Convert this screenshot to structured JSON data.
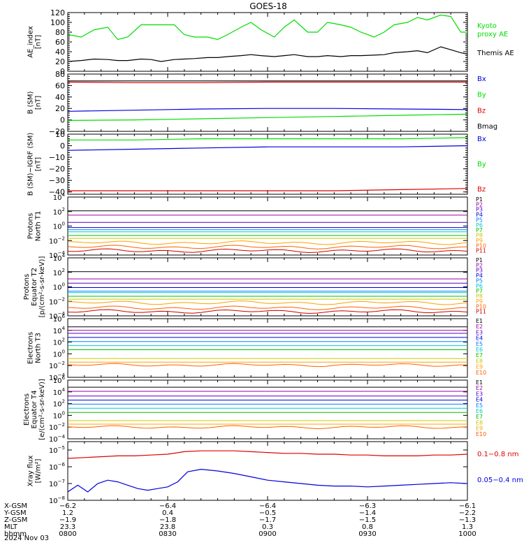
{
  "title": "GOES-18",
  "date_label": "2024 Nov 03",
  "colors": {
    "green": "#00dd00",
    "black": "#000000",
    "blue": "#0000dd",
    "red": "#dd0000",
    "p": [
      "#000000",
      "#a000a0",
      "#5000c8",
      "#0000dd",
      "#0080ff",
      "#00c8c8",
      "#00c000",
      "#c8c800",
      "#ffa000",
      "#ff6000",
      "#cc0000",
      "#990000"
    ]
  },
  "chart_data": [
    {
      "type": "line",
      "id": "ae",
      "ylabel": "AE_index\n[nT]",
      "ylim": [
        0,
        120
      ],
      "yticks": [
        0,
        20,
        40,
        60,
        80,
        100,
        120
      ],
      "xlim": [
        0,
        120
      ],
      "series": [
        {
          "name": "Kyoto\nproxy AE",
          "color": "green",
          "x": [
            0,
            4,
            8,
            12,
            15,
            18,
            22,
            25,
            28,
            32,
            35,
            38,
            42,
            45,
            48,
            52,
            55,
            58,
            62,
            65,
            68,
            72,
            75,
            78,
            82,
            85,
            88,
            92,
            95,
            98,
            102,
            105,
            108,
            112,
            115,
            118,
            120
          ],
          "y": [
            75,
            70,
            85,
            90,
            65,
            70,
            95,
            95,
            95,
            95,
            75,
            70,
            70,
            65,
            75,
            90,
            100,
            85,
            70,
            90,
            105,
            80,
            80,
            100,
            95,
            90,
            80,
            70,
            80,
            95,
            100,
            110,
            105,
            115,
            112,
            80,
            80
          ]
        },
        {
          "name": "Themis AE",
          "color": "black",
          "x": [
            0,
            4,
            8,
            12,
            15,
            18,
            22,
            25,
            28,
            32,
            35,
            38,
            42,
            45,
            48,
            52,
            55,
            58,
            62,
            65,
            68,
            72,
            75,
            78,
            82,
            85,
            88,
            92,
            95,
            98,
            102,
            105,
            108,
            112,
            115,
            118,
            120
          ],
          "y": [
            20,
            22,
            25,
            24,
            22,
            22,
            25,
            24,
            20,
            24,
            25,
            26,
            28,
            28,
            30,
            32,
            34,
            32,
            30,
            32,
            34,
            30,
            30,
            32,
            30,
            32,
            32,
            33,
            34,
            38,
            40,
            42,
            38,
            50,
            44,
            38,
            35
          ]
        }
      ]
    },
    {
      "type": "line",
      "id": "bsm",
      "ylabel": "B (SM)\n[nT]",
      "ylim": [
        -20,
        80
      ],
      "yticks": [
        -20,
        0,
        20,
        40,
        60,
        80
      ],
      "xlim": [
        0,
        120
      ],
      "series": [
        {
          "name": "Bx",
          "color": "blue",
          "x": [
            0,
            20,
            40,
            60,
            80,
            100,
            120
          ],
          "y": [
            15,
            17,
            19,
            20,
            20,
            19,
            18
          ]
        },
        {
          "name": "By",
          "color": "green",
          "x": [
            0,
            20,
            40,
            60,
            80,
            100,
            120
          ],
          "y": [
            -1,
            0,
            2,
            4,
            6,
            8,
            10
          ]
        },
        {
          "name": "Bz",
          "color": "red",
          "x": [
            0,
            20,
            40,
            60,
            80,
            100,
            120
          ],
          "y": [
            66,
            65,
            65,
            66,
            66,
            66,
            66
          ]
        },
        {
          "name": "Bmag",
          "color": "black",
          "x": [
            0,
            20,
            40,
            60,
            80,
            100,
            120
          ],
          "y": [
            68,
            68,
            68,
            68,
            68,
            68,
            68
          ]
        }
      ]
    },
    {
      "type": "line",
      "id": "bigrf",
      "ylabel": "B (SM)−IGRF (SM)\n[nT]",
      "ylim": [
        -42,
        10
      ],
      "yticks": [
        -40,
        -30,
        -20,
        -10,
        0,
        10
      ],
      "xlim": [
        0,
        120
      ],
      "series": [
        {
          "name": "Bx",
          "color": "blue",
          "x": [
            0,
            20,
            40,
            60,
            80,
            100,
            120
          ],
          "y": [
            -4,
            -3,
            -2,
            -1,
            -1,
            -1,
            0
          ]
        },
        {
          "name": "By",
          "color": "green",
          "x": [
            0,
            20,
            40,
            60,
            80,
            100,
            120
          ],
          "y": [
            5,
            5,
            6,
            6,
            6,
            6,
            7
          ]
        },
        {
          "name": "Bz",
          "color": "red",
          "x": [
            0,
            20,
            40,
            60,
            80,
            100,
            120
          ],
          "y": [
            -39,
            -39,
            -39,
            -39,
            -39,
            -38,
            -37
          ]
        }
      ]
    },
    {
      "type": "line",
      "id": "pn",
      "log": true,
      "ylabel": "Protons\nNorth T1",
      "ylim": [
        -4,
        4
      ],
      "yticks": [
        -4,
        -2,
        0,
        2,
        4
      ],
      "xlim": [
        0,
        120
      ],
      "legend": [
        "P1",
        "P2",
        "P3",
        "P4",
        "P5",
        "P6",
        "P7",
        "P8",
        "P9",
        "P10",
        "P11"
      ],
      "levels": [
        2.1,
        1.5,
        0.5,
        -0.2,
        -0.5,
        -0.8,
        -1.3,
        -1.7,
        -2.3,
        -2.9,
        -3.4
      ]
    },
    {
      "type": "line",
      "id": "pe",
      "log": true,
      "ylabel": "Protons\nEquator T2\n[p/(cm²-s-sr-keV)]",
      "ylim": [
        -4,
        4
      ],
      "yticks": [
        -4,
        -2,
        0,
        2,
        4
      ],
      "xlim": [
        0,
        120
      ],
      "legend": [
        "P1",
        "P2",
        "P3",
        "P4",
        "P5",
        "P6",
        "P7",
        "P8",
        "P9",
        "P10",
        "P11"
      ],
      "levels": [
        2.1,
        1.1,
        0.5,
        -0.1,
        -0.6,
        -0.8,
        -1.3,
        -1.7,
        -2.2,
        -2.9,
        -3.4
      ]
    },
    {
      "type": "line",
      "id": "en",
      "log": true,
      "ylabel": "Electrons\nNorth T3",
      "ylim": [
        -4,
        6
      ],
      "yticks": [
        -4,
        -2,
        0,
        2,
        4,
        6
      ],
      "xlim": [
        0,
        120
      ],
      "legend": [
        "E1",
        "E2",
        "E3",
        "E4",
        "E5",
        "E6",
        "E7",
        "E8",
        "E9",
        "E10"
      ],
      "levels": [
        4.6,
        4.0,
        3.5,
        2.8,
        2.1,
        1.4,
        0.7,
        -0.8,
        -1.4,
        -1.9
      ]
    },
    {
      "type": "line",
      "id": "ee",
      "log": true,
      "ylabel": "Electrons\nEquator T4\n[e/(cm²-s-sr-keV)]",
      "ylim": [
        -4,
        6
      ],
      "yticks": [
        -4,
        -2,
        0,
        2,
        4,
        6
      ],
      "xlim": [
        0,
        120
      ],
      "legend": [
        "E1",
        "E2",
        "E3",
        "E4",
        "E5",
        "E6",
        "E7",
        "E8",
        "E9",
        "E10"
      ],
      "levels": [
        4.8,
        4.1,
        3.3,
        2.6,
        1.9,
        1.2,
        0.5,
        -0.9,
        -1.5,
        -2.0
      ]
    },
    {
      "type": "line",
      "id": "xray",
      "log": true,
      "ylabel": "Xray flux\n[W/m²]",
      "ylim": [
        -8,
        -4.5
      ],
      "yticks": [
        -8,
        -7,
        -6,
        -5
      ],
      "xlim": [
        0,
        120
      ],
      "series": [
        {
          "name": "0.1−0.8 nm",
          "color": "red",
          "x": [
            0,
            5,
            10,
            15,
            20,
            25,
            30,
            35,
            40,
            45,
            50,
            55,
            60,
            65,
            70,
            75,
            80,
            85,
            90,
            95,
            100,
            105,
            110,
            115,
            120
          ],
          "y": [
            -5.5,
            -5.45,
            -5.4,
            -5.35,
            -5.35,
            -5.3,
            -5.25,
            -5.1,
            -5.05,
            -5.05,
            -5.05,
            -5.1,
            -5.15,
            -5.2,
            -5.2,
            -5.25,
            -5.25,
            -5.3,
            -5.3,
            -5.35,
            -5.35,
            -5.35,
            -5.3,
            -5.3,
            -5.25
          ]
        },
        {
          "name": "0.05−0.4 nm",
          "color": "blue",
          "x": [
            0,
            3,
            6,
            9,
            12,
            15,
            18,
            21,
            24,
            27,
            30,
            33,
            36,
            40,
            45,
            50,
            55,
            60,
            65,
            70,
            75,
            80,
            85,
            90,
            95,
            100,
            105,
            110,
            115,
            120
          ],
          "y": [
            -7.5,
            -7.1,
            -7.5,
            -7.0,
            -6.8,
            -6.9,
            -7.1,
            -7.3,
            -7.4,
            -7.3,
            -7.2,
            -6.9,
            -6.3,
            -6.15,
            -6.25,
            -6.4,
            -6.6,
            -6.8,
            -6.9,
            -7.0,
            -7.1,
            -7.15,
            -7.15,
            -7.2,
            -7.15,
            -7.1,
            -7.05,
            -7.0,
            -6.95,
            -7.0
          ]
        }
      ]
    }
  ],
  "x_axis": {
    "row_labels": [
      "X-GSM",
      "Y-GSM",
      "Z-GSM",
      "MLT",
      "hhmm"
    ],
    "columns": [
      {
        "x": 0,
        "values": [
          "−6.2",
          "1.2",
          "−1.9",
          "23.3",
          "0800"
        ]
      },
      {
        "x": 30,
        "values": [
          "−6.4",
          "0.4",
          "−1.8",
          "23.8",
          "0830"
        ]
      },
      {
        "x": 60,
        "values": [
          "−6.4",
          "−0.5",
          "−1.7",
          "0.3",
          "0900"
        ]
      },
      {
        "x": 90,
        "values": [
          "−6.3",
          "−1.4",
          "−1.5",
          "0.8",
          "0930"
        ]
      },
      {
        "x": 120,
        "values": [
          "−6.1",
          "−2.2",
          "−1.3",
          "1.3",
          "1000"
        ]
      }
    ]
  }
}
